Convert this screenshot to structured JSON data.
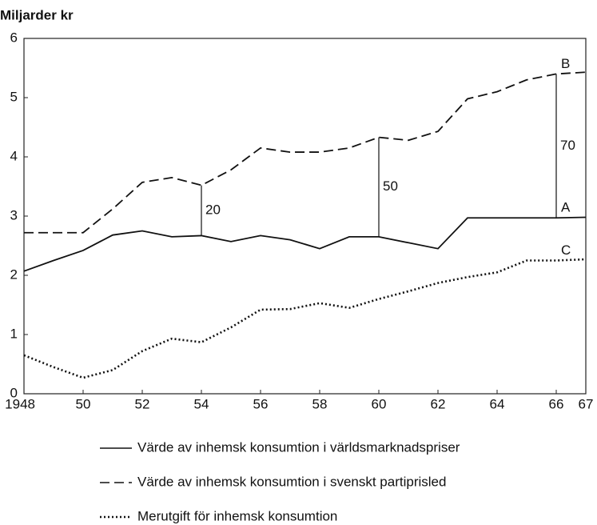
{
  "chart_data": {
    "type": "line",
    "ylabel": "Miljarder kr",
    "x": [
      1948,
      1949,
      1950,
      1951,
      1952,
      1953,
      1954,
      1955,
      1956,
      1957,
      1958,
      1959,
      1960,
      1961,
      1962,
      1963,
      1964,
      1965,
      1966,
      1967
    ],
    "series": [
      {
        "name": "Värde av inhemsk konsumtion i världsmarknadspriser",
        "label": "A",
        "color": "#111",
        "dash": "solid",
        "values": [
          2.07,
          2.25,
          2.42,
          2.68,
          2.75,
          2.65,
          2.67,
          2.57,
          2.67,
          2.6,
          2.45,
          2.65,
          2.65,
          2.55,
          2.45,
          2.97,
          2.97,
          2.97,
          2.97,
          2.98
        ]
      },
      {
        "name": "Värde av inhemsk konsumtion i svenskt partiprisled",
        "label": "B",
        "color": "#111",
        "dash": "dashed",
        "values": [
          2.72,
          2.72,
          2.72,
          3.12,
          3.57,
          3.65,
          3.52,
          3.78,
          4.15,
          4.08,
          4.08,
          4.15,
          4.33,
          4.28,
          4.43,
          4.98,
          5.1,
          5.3,
          5.4,
          5.43
        ]
      },
      {
        "name": "Merutgift för inhemsk konsumtion",
        "label": "C",
        "color": "#111",
        "dash": "dotted",
        "values": [
          0.65,
          0.45,
          0.27,
          0.4,
          0.72,
          0.93,
          0.87,
          1.12,
          1.42,
          1.43,
          1.53,
          1.45,
          1.6,
          1.73,
          1.87,
          1.97,
          2.05,
          2.25,
          2.25,
          2.27
        ]
      }
    ],
    "annotations": [
      {
        "x": 1954,
        "text": "20"
      },
      {
        "x": 1960,
        "text": "50"
      },
      {
        "x": 1966,
        "text": "70"
      }
    ],
    "xlim": [
      1948,
      1967
    ],
    "xticks": [
      {
        "value": 1948,
        "label": "1948"
      },
      {
        "value": 1950,
        "label": "50"
      },
      {
        "value": 1952,
        "label": "52"
      },
      {
        "value": 1954,
        "label": "54"
      },
      {
        "value": 1956,
        "label": "56"
      },
      {
        "value": 1958,
        "label": "58"
      },
      {
        "value": 1960,
        "label": "60"
      },
      {
        "value": 1962,
        "label": "62"
      },
      {
        "value": 1964,
        "label": "64"
      },
      {
        "value": 1966,
        "label": "66"
      },
      {
        "value": 1967,
        "label": "67"
      }
    ],
    "ylim": [
      0,
      6
    ],
    "yticks": [
      0,
      1,
      2,
      3,
      4,
      5,
      6
    ],
    "grid": false
  }
}
